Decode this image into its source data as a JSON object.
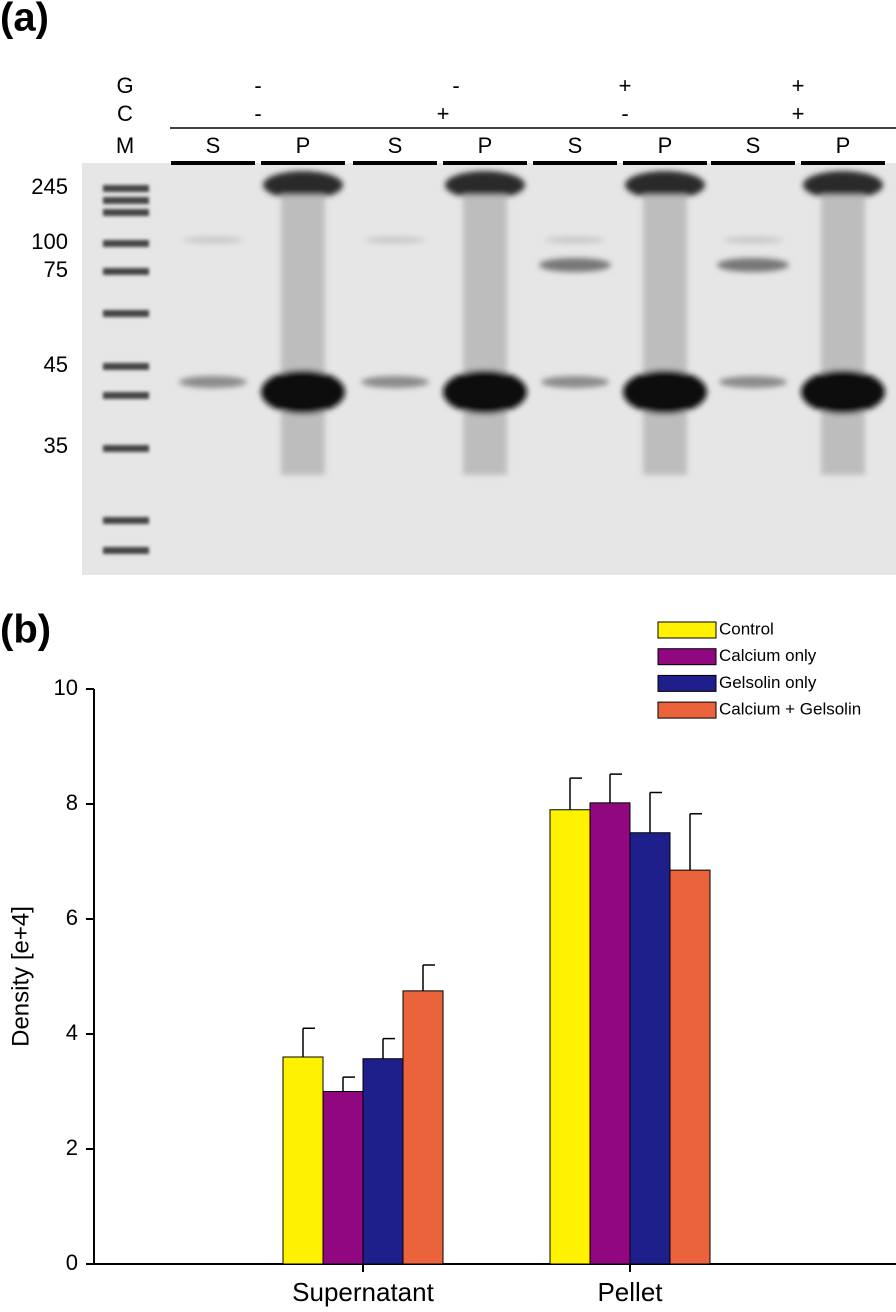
{
  "panel_a": {
    "label": "(a)",
    "row_labels": [
      "G",
      "C",
      "M"
    ],
    "g": [
      "-",
      "-",
      "+",
      "+"
    ],
    "c": [
      "-",
      "+",
      "-",
      "+"
    ],
    "lanes": [
      "S",
      "P",
      "S",
      "P",
      "S",
      "P",
      "S",
      "P"
    ],
    "markers": [
      "245",
      "100",
      "75",
      "45",
      "35"
    ]
  },
  "chart_data": {
    "type": "bar",
    "panel_label": "(b)",
    "ylabel": "Density [e+4]",
    "categories": [
      "Supernatant",
      "Pellet"
    ],
    "series": [
      {
        "name": "Control",
        "color": "#fff200",
        "values": [
          3.6,
          7.9
        ],
        "errors": [
          0.5,
          0.55
        ]
      },
      {
        "name": "Calcium only",
        "color": "#91077f",
        "values": [
          3.0,
          8.02
        ],
        "errors": [
          0.25,
          0.5
        ]
      },
      {
        "name": "Gelsolin only",
        "color": "#1e1f8a",
        "values": [
          3.57,
          7.5
        ],
        "errors": [
          0.35,
          0.7
        ]
      },
      {
        "name": "Calcium + Gelsolin",
        "color": "#eb633b",
        "values": [
          4.75,
          6.85
        ],
        "errors": [
          0.45,
          0.98
        ]
      }
    ],
    "ylim": [
      0,
      10
    ],
    "yticks": [
      0,
      2,
      4,
      6,
      8,
      10
    ],
    "legend": "upper right"
  }
}
